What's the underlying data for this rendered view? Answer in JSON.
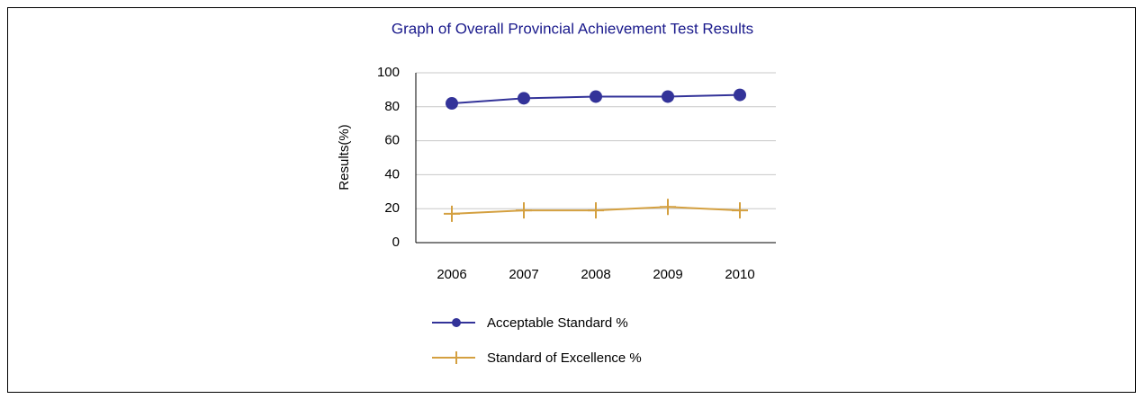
{
  "chart_data": {
    "type": "line",
    "title": "Graph of Overall Provincial Achievement Test Results",
    "y_label": "Results(%)",
    "categories": [
      "2006",
      "2007",
      "2008",
      "2009",
      "2010"
    ],
    "series": [
      {
        "name": "Acceptable Standard %",
        "color": "#333399",
        "marker": "circle",
        "values": [
          82,
          85,
          86,
          86,
          87
        ]
      },
      {
        "name": "Standard of Excellence %",
        "color": "#d4a040",
        "marker": "plus",
        "values": [
          17,
          19,
          19,
          21,
          19
        ]
      }
    ],
    "ylim": [
      0,
      100
    ],
    "yticks": [
      0,
      20,
      40,
      60,
      80,
      100
    ],
    "grid": true
  }
}
